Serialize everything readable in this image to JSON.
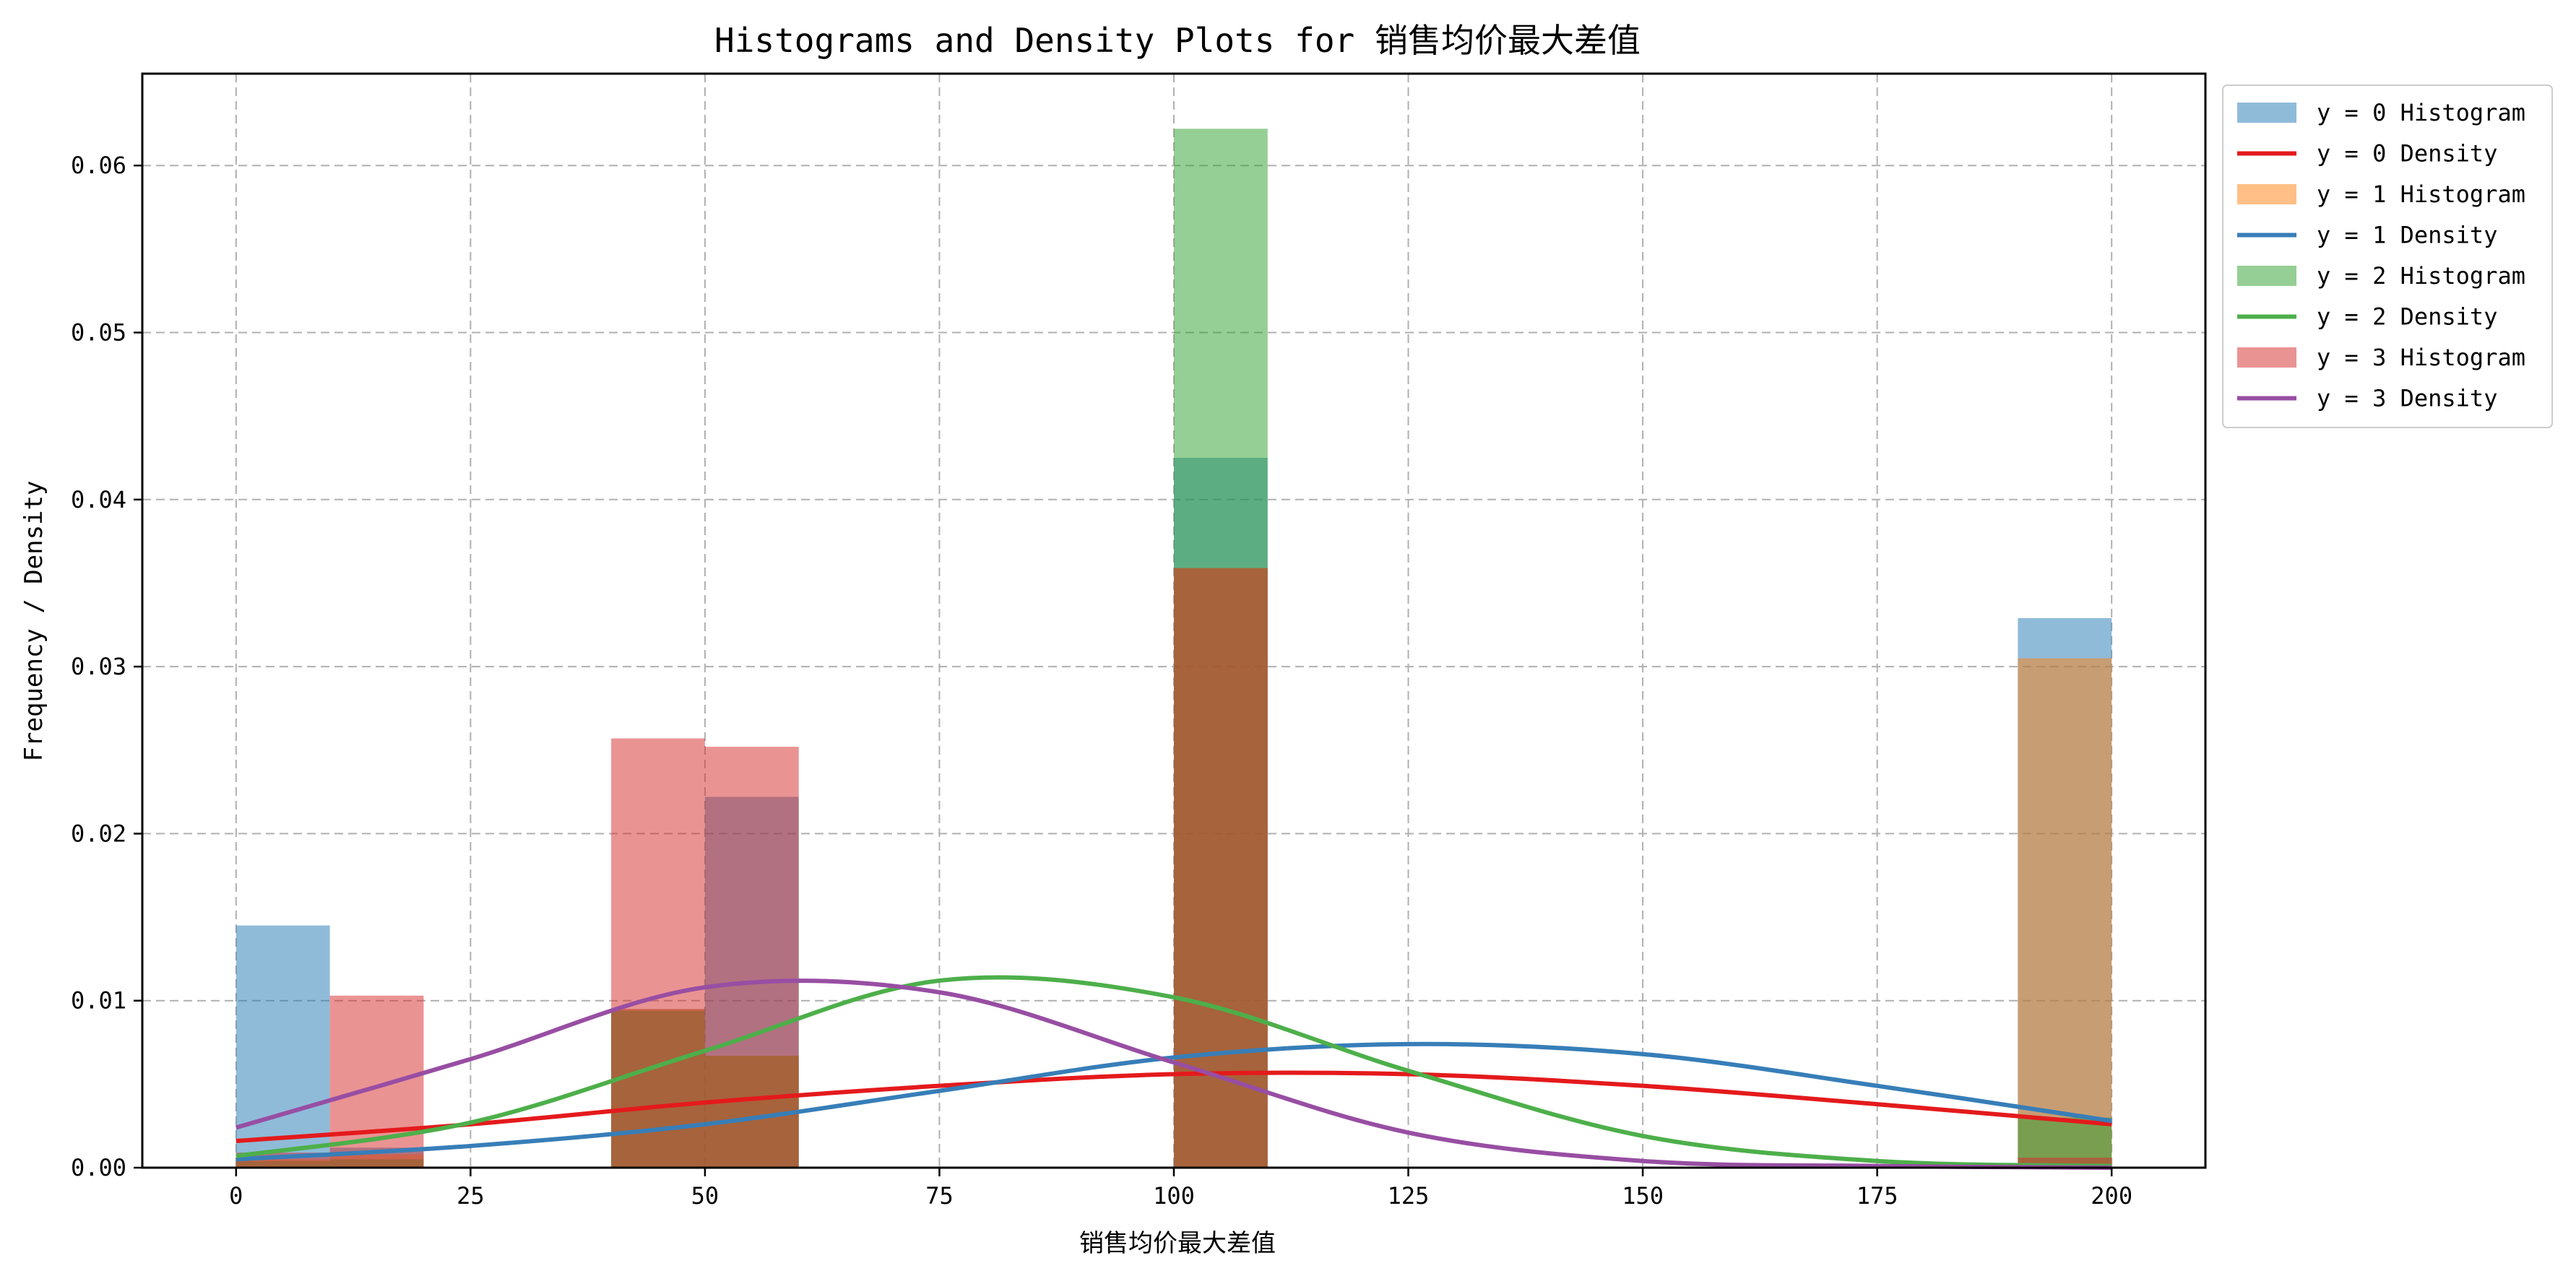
{
  "chart_data": {
    "type": "bar",
    "title": "Histograms and Density Plots for 销售均价最大差值",
    "xlabel": "销售均价最大差值",
    "ylabel": "Frequency / Density",
    "xlim": [
      -10,
      210
    ],
    "ylim": [
      0,
      0.0655
    ],
    "x_ticks": [
      0,
      25,
      50,
      75,
      100,
      125,
      150,
      175,
      200
    ],
    "x_tick_labels": [
      "0",
      "25",
      "50",
      "75",
      "100",
      "125",
      "150",
      "175",
      "200"
    ],
    "y_ticks": [
      0,
      0.01,
      0.02,
      0.03,
      0.04,
      0.05,
      0.06
    ],
    "y_tick_labels": [
      "0.00",
      "0.01",
      "0.02",
      "0.03",
      "0.04",
      "0.05",
      "0.06"
    ],
    "grid": true,
    "legend_position": "outside-right-top",
    "bin_width": 10,
    "bin_starts": [
      0,
      10,
      40,
      50,
      100,
      190
    ],
    "histograms": [
      {
        "name": "y = 0 Histogram",
        "color": "#1f77b4",
        "values": [
          0.0145,
          0.0012,
          0.0095,
          0.0222,
          0.0425,
          0.0329
        ]
      },
      {
        "name": "y = 1 Histogram",
        "color": "#ff7f0e",
        "values": [
          0.0005,
          0.0008,
          0.0095,
          0.0067,
          0.0359,
          0.0305
        ]
      },
      {
        "name": "y = 2 Histogram",
        "color": "#2ca02c",
        "values": [
          0.0004,
          0.0005,
          0.0094,
          0.0067,
          0.0622,
          0.003
        ]
      },
      {
        "name": "y = 3 Histogram",
        "color": "#d62728",
        "values": [
          0.0009,
          0.0103,
          0.0257,
          0.0252,
          0.0359,
          0.0006
        ]
      }
    ],
    "densities": [
      {
        "name": "y = 0 Density",
        "color": "#e41a1c",
        "x": [
          0,
          25,
          50,
          75,
          100,
          125,
          150,
          175,
          200
        ],
        "values": [
          0.0016,
          0.0026,
          0.0039,
          0.0049,
          0.0056,
          0.0056,
          0.0049,
          0.0038,
          0.0026
        ]
      },
      {
        "name": "y = 1 Density",
        "color": "#377eb8",
        "x": [
          0,
          25,
          50,
          75,
          100,
          125,
          150,
          175,
          200
        ],
        "values": [
          0.0005,
          0.0013,
          0.0026,
          0.0046,
          0.0066,
          0.0074,
          0.0068,
          0.0049,
          0.0028
        ]
      },
      {
        "name": "y = 2 Density",
        "color": "#4daf4a",
        "x": [
          0,
          25,
          50,
          75,
          100,
          125,
          150,
          175,
          200
        ],
        "values": [
          0.0007,
          0.0027,
          0.007,
          0.0112,
          0.0102,
          0.0058,
          0.0019,
          0.0004,
          0.0001
        ]
      },
      {
        "name": "y = 3 Density",
        "color": "#984ea3",
        "x": [
          0,
          25,
          50,
          75,
          100,
          125,
          150,
          175,
          200
        ],
        "values": [
          0.0024,
          0.0065,
          0.0108,
          0.0105,
          0.0063,
          0.0021,
          0.0004,
          0.0001,
          0.0
        ]
      }
    ],
    "legend": [
      {
        "label": "y = 0 Histogram",
        "kind": "patch",
        "color": "#1f77b4"
      },
      {
        "label": "y = 0 Density",
        "kind": "line",
        "color": "#e41a1c"
      },
      {
        "label": "y = 1 Histogram",
        "kind": "patch",
        "color": "#ff7f0e"
      },
      {
        "label": "y = 1 Density",
        "kind": "line",
        "color": "#377eb8"
      },
      {
        "label": "y = 2 Histogram",
        "kind": "patch",
        "color": "#2ca02c"
      },
      {
        "label": "y = 2 Density",
        "kind": "line",
        "color": "#4daf4a"
      },
      {
        "label": "y = 3 Histogram",
        "kind": "patch",
        "color": "#d62728"
      },
      {
        "label": "y = 3 Density",
        "kind": "line",
        "color": "#984ea3"
      }
    ]
  }
}
